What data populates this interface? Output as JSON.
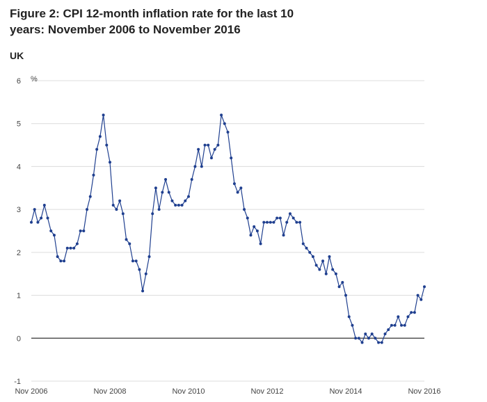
{
  "header": {
    "title": "Figure 2: CPI 12-month inflation rate for the last 10 years: November 2006 to November 2016",
    "subtitle": "UK"
  },
  "chart_data": {
    "type": "line",
    "title": "Figure 2: CPI 12-month inflation rate for the last 10 years: November 2006 to November 2016",
    "subtitle": "UK",
    "ylabel": "%",
    "ylim": [
      -1,
      6
    ],
    "yticks": [
      -1,
      0,
      1,
      2,
      3,
      4,
      5,
      6
    ],
    "xtick_labels": [
      "Nov 2006",
      "Nov 2008",
      "Nov 2010",
      "Nov 2012",
      "Nov 2014",
      "Nov 2016"
    ],
    "grid": true,
    "legend": "none",
    "colors": {
      "line": "#1f3f8f",
      "grid": "#dcdcdc",
      "zero_line": "#333333"
    },
    "series": [
      {
        "x": [
          "2006-11",
          "2006-12",
          "2007-01",
          "2007-02",
          "2007-03",
          "2007-04",
          "2007-05",
          "2007-06",
          "2007-07",
          "2007-08",
          "2007-09",
          "2007-10",
          "2007-11",
          "2007-12",
          "2008-01",
          "2008-02",
          "2008-03",
          "2008-04",
          "2008-05",
          "2008-06",
          "2008-07",
          "2008-08",
          "2008-09",
          "2008-10",
          "2008-11",
          "2008-12",
          "2009-01",
          "2009-02",
          "2009-03",
          "2009-04",
          "2009-05",
          "2009-06",
          "2009-07",
          "2009-08",
          "2009-09",
          "2009-10",
          "2009-11",
          "2009-12",
          "2010-01",
          "2010-02",
          "2010-03",
          "2010-04",
          "2010-05",
          "2010-06",
          "2010-07",
          "2010-08",
          "2010-09",
          "2010-10",
          "2010-11",
          "2010-12",
          "2011-01",
          "2011-02",
          "2011-03",
          "2011-04",
          "2011-05",
          "2011-06",
          "2011-07",
          "2011-08",
          "2011-09",
          "2011-10",
          "2011-11",
          "2011-12",
          "2012-01",
          "2012-02",
          "2012-03",
          "2012-04",
          "2012-05",
          "2012-06",
          "2012-07",
          "2012-08",
          "2012-09",
          "2012-10",
          "2012-11",
          "2012-12",
          "2013-01",
          "2013-02",
          "2013-03",
          "2013-04",
          "2013-05",
          "2013-06",
          "2013-07",
          "2013-08",
          "2013-09",
          "2013-10",
          "2013-11",
          "2013-12",
          "2014-01",
          "2014-02",
          "2014-03",
          "2014-04",
          "2014-05",
          "2014-06",
          "2014-07",
          "2014-08",
          "2014-09",
          "2014-10",
          "2014-11",
          "2014-12",
          "2015-01",
          "2015-02",
          "2015-03",
          "2015-04",
          "2015-05",
          "2015-06",
          "2015-07",
          "2015-08",
          "2015-09",
          "2015-10",
          "2015-11",
          "2015-12",
          "2016-01",
          "2016-02",
          "2016-03",
          "2016-04",
          "2016-05",
          "2016-06",
          "2016-07",
          "2016-08",
          "2016-09",
          "2016-10",
          "2016-11"
        ],
        "y": [
          2.7,
          3.0,
          2.7,
          2.8,
          3.1,
          2.8,
          2.5,
          2.4,
          1.9,
          1.8,
          1.8,
          2.1,
          2.1,
          2.1,
          2.2,
          2.5,
          2.5,
          3.0,
          3.3,
          3.8,
          4.4,
          4.7,
          5.2,
          4.5,
          4.1,
          3.1,
          3.0,
          3.2,
          2.9,
          2.3,
          2.2,
          1.8,
          1.8,
          1.6,
          1.1,
          1.5,
          1.9,
          2.9,
          3.5,
          3.0,
          3.4,
          3.7,
          3.4,
          3.2,
          3.1,
          3.1,
          3.1,
          3.2,
          3.3,
          3.7,
          4.0,
          4.4,
          4.0,
          4.5,
          4.5,
          4.2,
          4.4,
          4.5,
          5.2,
          5.0,
          4.8,
          4.2,
          3.6,
          3.4,
          3.5,
          3.0,
          2.8,
          2.4,
          2.6,
          2.5,
          2.2,
          2.7,
          2.7,
          2.7,
          2.7,
          2.8,
          2.8,
          2.4,
          2.7,
          2.9,
          2.8,
          2.7,
          2.7,
          2.2,
          2.1,
          2.0,
          1.9,
          1.7,
          1.6,
          1.8,
          1.5,
          1.9,
          1.6,
          1.5,
          1.2,
          1.3,
          1.0,
          0.5,
          0.3,
          0.0,
          0.0,
          -0.1,
          0.1,
          0.0,
          0.1,
          0.0,
          -0.1,
          -0.1,
          0.1,
          0.2,
          0.3,
          0.3,
          0.5,
          0.3,
          0.3,
          0.5,
          0.6,
          0.6,
          1.0,
          0.9,
          1.2
        ]
      }
    ]
  }
}
